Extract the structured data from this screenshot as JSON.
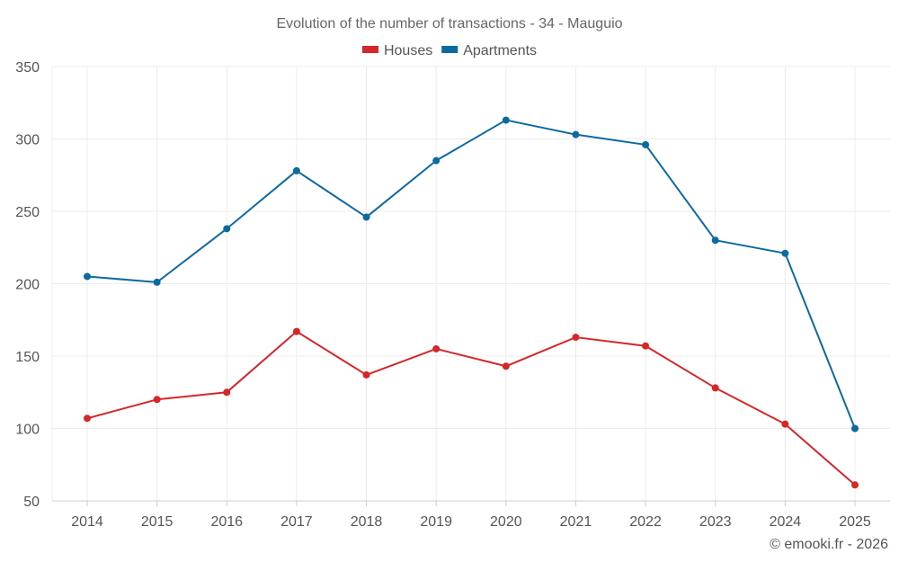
{
  "chart_data": {
    "type": "line",
    "title": "Evolution of the number of transactions - 34 - Mauguio",
    "xlabel": "",
    "ylabel": "",
    "categories": [
      "2014",
      "2015",
      "2016",
      "2017",
      "2018",
      "2019",
      "2020",
      "2021",
      "2022",
      "2023",
      "2024",
      "2025"
    ],
    "ylim": [
      50,
      350
    ],
    "yticks": [
      50,
      100,
      150,
      200,
      250,
      300,
      350
    ],
    "grid": true,
    "legend_position": "top-center",
    "series": [
      {
        "name": "Houses",
        "color": "#d62728",
        "values": [
          107,
          120,
          125,
          167,
          137,
          155,
          143,
          163,
          157,
          128,
          103,
          61
        ]
      },
      {
        "name": "Apartments",
        "color": "#0b6aa2",
        "values": [
          205,
          201,
          238,
          278,
          246,
          285,
          313,
          303,
          296,
          230,
          221,
          100
        ]
      }
    ],
    "credit": "© emooki.fr - 2026"
  }
}
